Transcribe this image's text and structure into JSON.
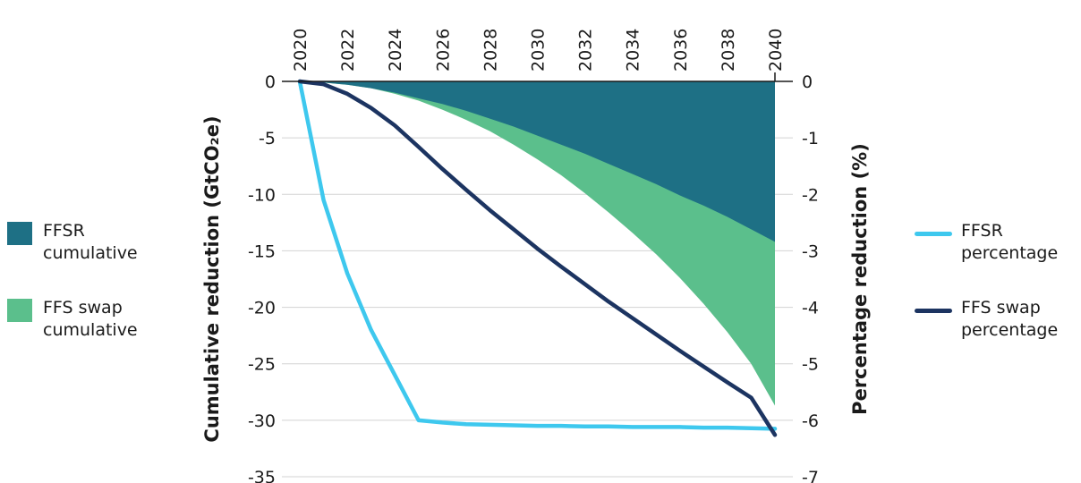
{
  "chart_data": {
    "type": "area",
    "x": [
      2020,
      2021,
      2022,
      2023,
      2024,
      2025,
      2026,
      2027,
      2028,
      2029,
      2030,
      2031,
      2032,
      2033,
      2034,
      2035,
      2036,
      2037,
      2038,
      2039,
      2040
    ],
    "x_ticks": [
      "2020",
      "2022",
      "2024",
      "2026",
      "2028",
      "2030",
      "2032",
      "2034",
      "2036",
      "2038",
      "2040"
    ],
    "left_axis": {
      "title": "Cumulative reduction (GtCO₂e)",
      "ylim": [
        -35,
        0
      ],
      "ticks": [
        "0",
        "-5",
        "-10",
        "-15",
        "-20",
        "-25",
        "-30",
        "-35"
      ]
    },
    "right_axis": {
      "title": "Percentage reduction (%)",
      "ylim": [
        -7,
        0
      ],
      "ticks": [
        "0",
        "-1",
        "-2",
        "-3",
        "-4",
        "-5",
        "-6",
        "-7"
      ]
    },
    "grid": true,
    "series": [
      {
        "name": "FFSR cumulative",
        "kind": "area",
        "axis": "left",
        "color": "#1e7085",
        "values": [
          0,
          -0.1,
          -0.3,
          -0.6,
          -1.0,
          -1.5,
          -2.0,
          -2.6,
          -3.3,
          -4.0,
          -4.8,
          -5.6,
          -6.4,
          -7.3,
          -8.2,
          -9.1,
          -10.1,
          -11.0,
          -12.0,
          -13.1,
          -14.2
        ]
      },
      {
        "name": "FFS swap cumulative",
        "kind": "area",
        "axis": "left",
        "color": "#5bbf8c",
        "values": [
          0,
          -0.1,
          -0.3,
          -0.6,
          -1.1,
          -1.7,
          -2.5,
          -3.4,
          -4.4,
          -5.6,
          -6.9,
          -8.3,
          -9.9,
          -11.6,
          -13.4,
          -15.3,
          -17.4,
          -19.7,
          -22.2,
          -25.0,
          -28.7
        ]
      },
      {
        "name": "FFSR percentage",
        "kind": "line",
        "axis": "right",
        "color": "#3ec8ee",
        "values": [
          0,
          -2.1,
          -3.4,
          -4.4,
          -5.2,
          -6.0,
          -6.04,
          -6.07,
          -6.08,
          -6.09,
          -6.1,
          -6.1,
          -6.11,
          -6.11,
          -6.12,
          -6.12,
          -6.12,
          -6.13,
          -6.13,
          -6.14,
          -6.15
        ]
      },
      {
        "name": "FFS swap percentage",
        "kind": "line",
        "axis": "right",
        "color": "#1c3461",
        "values": [
          0,
          -0.05,
          -0.22,
          -0.47,
          -0.78,
          -1.16,
          -1.55,
          -1.92,
          -2.28,
          -2.62,
          -2.96,
          -3.28,
          -3.59,
          -3.9,
          -4.19,
          -4.48,
          -4.77,
          -5.05,
          -5.33,
          -5.6,
          -6.26
        ]
      }
    ]
  },
  "legend_left": [
    {
      "line1": "FFSR",
      "line2": "cumulative",
      "color": "#1e7085"
    },
    {
      "line1": "FFS swap",
      "line2": "cumulative",
      "color": "#5bbf8c"
    }
  ],
  "legend_right": [
    {
      "line1": "FFSR",
      "line2": "percentage",
      "color": "#3ec8ee"
    },
    {
      "line1": "FFS swap",
      "line2": "percentage",
      "color": "#1c3461"
    }
  ]
}
